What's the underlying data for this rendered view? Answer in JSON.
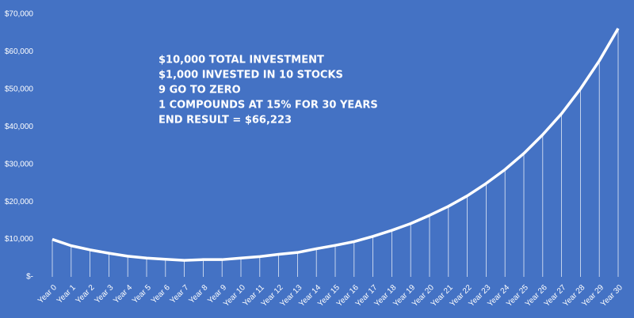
{
  "chart_data": {
    "type": "line",
    "annotations": [
      "$10,000 TOTAL INVESTMENT",
      "$1,000 INVESTED IN 10 STOCKS",
      "9 GO TO ZERO",
      "1 COMPOUNDS AT 15% FOR 30 YEARS",
      "END RESULT = $66,223"
    ],
    "categories": [
      "Year 0",
      "Year 1",
      "Year 2",
      "Year 3",
      "Year 4",
      "Year 5",
      "Year 6",
      "Year 7",
      "Year 8",
      "Year 9",
      "Year 10",
      "Year 11",
      "Year 12",
      "Year 13",
      "Year 14",
      "Year 15",
      "Year 16",
      "Year 17",
      "Year 18",
      "Year 19",
      "Year 20",
      "Year 21",
      "Year 22",
      "Year 23",
      "Year 24",
      "Year 25",
      "Year 26",
      "Year 27",
      "Year 28",
      "Year 29",
      "Year 30"
    ],
    "values": [
      10000,
      8300,
      7200,
      6300,
      5500,
      5000,
      4700,
      4400,
      4600,
      4600,
      5000,
      5400,
      6000,
      6500,
      7500,
      8400,
      9400,
      10800,
      12400,
      14200,
      16400,
      18800,
      21600,
      24900,
      28600,
      32900,
      37900,
      43500,
      50100,
      57600,
      66200
    ],
    "color": "#ffffff",
    "background": "#4472c4",
    "ylim": [
      0,
      70000
    ],
    "yticks": [
      {
        "value": 0,
        "label": "$-"
      },
      {
        "value": 10000,
        "label": "$10,000"
      },
      {
        "value": 20000,
        "label": "$20,000"
      },
      {
        "value": 30000,
        "label": "$30,000"
      },
      {
        "value": 40000,
        "label": "$40,000"
      },
      {
        "value": 50000,
        "label": "$50,000"
      },
      {
        "value": 60000,
        "label": "$60,000"
      },
      {
        "value": 70000,
        "label": "$70,000"
      }
    ],
    "drop_lines": true
  }
}
